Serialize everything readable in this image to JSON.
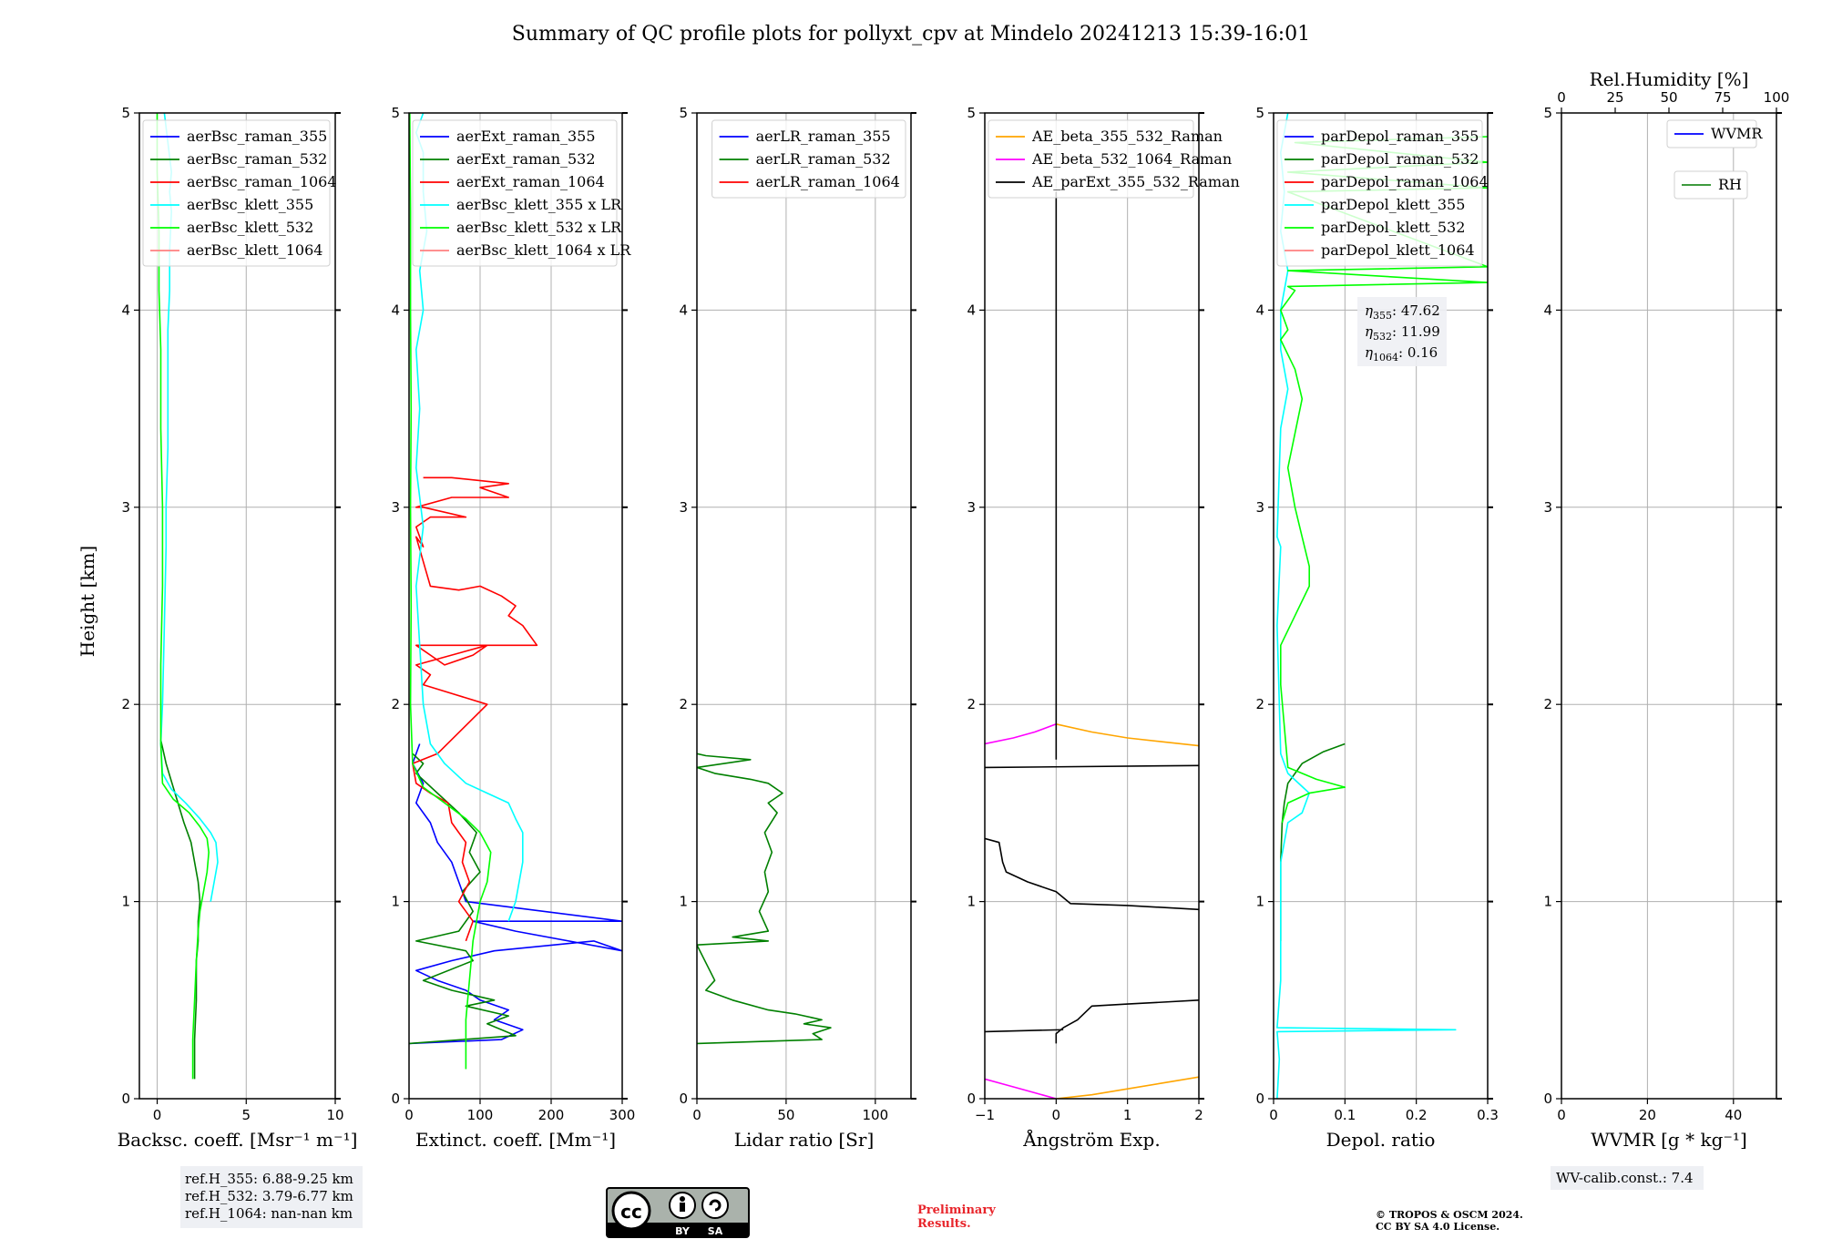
{
  "title": "Summary of QC profile plots for pollyxt_cpv at Mindelo 20241213 15:39-16:01",
  "y_label": "Height [km]",
  "chart_data": [
    {
      "type": "line",
      "name": "backscatter",
      "xlabel": "Backsc. coeff. [Msr⁻¹ m⁻¹]",
      "xlim": [
        -1,
        10
      ],
      "ylim": [
        0,
        5
      ],
      "xticks": [
        0,
        5,
        10
      ],
      "yticks": [
        0,
        1,
        2,
        3,
        4,
        5
      ],
      "grid": true,
      "legend": "top-right",
      "series": [
        {
          "name": "aerBsc_raman_355",
          "color": "#0000ff",
          "x": [],
          "y": []
        },
        {
          "name": "aerBsc_raman_532",
          "color": "#008000",
          "x": [
            2.1,
            2.1,
            2.2,
            2.2,
            2.3,
            2.3,
            2.4,
            2.3,
            2.1,
            1.9,
            1.5,
            1.0,
            0.5,
            0.2
          ],
          "y": [
            0.1,
            0.3,
            0.5,
            0.7,
            0.8,
            0.9,
            1.0,
            1.1,
            1.2,
            1.3,
            1.4,
            1.55,
            1.7,
            1.82
          ]
        },
        {
          "name": "aerBsc_raman_1064",
          "color": "#ff0000",
          "x": [],
          "y": []
        },
        {
          "name": "aerBsc_klett_355",
          "color": "#00ffff",
          "x": [
            3.0,
            3.2,
            3.4,
            3.3,
            3.0,
            2.4,
            1.6,
            0.8,
            0.3,
            0.2,
            0.3,
            0.4,
            0.5,
            0.5,
            0.6,
            0.6,
            0.6,
            0.7,
            0.7,
            0.8,
            0.7,
            0.8,
            0.6,
            0.4
          ],
          "y": [
            1.0,
            1.1,
            1.2,
            1.3,
            1.35,
            1.42,
            1.5,
            1.57,
            1.65,
            1.8,
            2.0,
            2.4,
            2.8,
            3.0,
            3.3,
            3.6,
            3.9,
            4.1,
            4.3,
            4.5,
            4.6,
            4.7,
            4.85,
            5.0
          ]
        },
        {
          "name": "aerBsc_klett_532",
          "color": "#00ff00",
          "x": [
            2.0,
            2.0,
            2.1,
            2.2,
            2.3,
            2.4,
            2.6,
            2.8,
            2.9,
            2.8,
            2.4,
            1.8,
            0.9,
            0.3,
            0.2,
            0.2,
            0.3,
            0.3,
            0.2,
            0.2,
            0.1,
            0.1,
            0.0,
            0.0
          ],
          "y": [
            0.1,
            0.3,
            0.5,
            0.7,
            0.85,
            0.95,
            1.05,
            1.15,
            1.25,
            1.32,
            1.38,
            1.45,
            1.52,
            1.6,
            1.8,
            2.2,
            2.6,
            3.0,
            3.4,
            3.8,
            4.1,
            4.4,
            4.7,
            5.0
          ]
        },
        {
          "name": "aerBsc_klett_1064",
          "color": "#ff8080",
          "x": [],
          "y": []
        }
      ]
    },
    {
      "type": "line",
      "name": "extinction",
      "xlabel": "Extinct. coeff. [Mm⁻¹]",
      "xlim": [
        0,
        300
      ],
      "ylim": [
        0,
        5
      ],
      "xticks": [
        0,
        100,
        200,
        300
      ],
      "yticks": [
        0,
        1,
        2,
        3,
        4,
        5
      ],
      "grid": true,
      "legend": "top-right",
      "series": [
        {
          "name": "aerExt_raman_355",
          "color": "#0000ff",
          "x": [
            0,
            130,
            160,
            120,
            140,
            100,
            80,
            40,
            10,
            60,
            120,
            260,
            300,
            150,
            90,
            300,
            80,
            70,
            60,
            40,
            30,
            10,
            20,
            5,
            15
          ],
          "y": [
            0.28,
            0.3,
            0.35,
            0.4,
            0.45,
            0.5,
            0.55,
            0.6,
            0.65,
            0.7,
            0.75,
            0.8,
            0.75,
            0.85,
            0.9,
            0.9,
            1.0,
            1.1,
            1.2,
            1.3,
            1.4,
            1.5,
            1.6,
            1.7,
            1.8
          ]
        },
        {
          "name": "aerExt_raman_532",
          "color": "#008000",
          "x": [
            0,
            150,
            110,
            140,
            80,
            120,
            60,
            20,
            90,
            80,
            10,
            70,
            90,
            75,
            100,
            85,
            95,
            70,
            40,
            10,
            20,
            5
          ],
          "y": [
            0.28,
            0.32,
            0.38,
            0.42,
            0.47,
            0.5,
            0.55,
            0.6,
            0.7,
            0.75,
            0.8,
            0.85,
            0.95,
            1.05,
            1.15,
            1.25,
            1.35,
            1.45,
            1.55,
            1.65,
            1.7,
            1.75
          ]
        },
        {
          "name": "aerExt_raman_1064",
          "color": "#ff0000",
          "x": [
            80,
            90,
            70,
            85,
            75,
            80,
            60,
            55,
            30,
            10,
            5,
            40,
            110,
            20,
            30,
            10,
            110,
            90,
            50,
            10,
            180,
            160,
            140,
            150,
            130,
            100,
            70,
            30,
            10,
            20,
            10,
            30,
            80,
            20,
            10,
            60,
            140,
            100,
            140,
            60,
            20
          ],
          "y": [
            0.8,
            0.9,
            1.0,
            1.1,
            1.2,
            1.3,
            1.4,
            1.5,
            1.55,
            1.6,
            1.7,
            1.75,
            2.0,
            2.1,
            2.15,
            2.2,
            2.3,
            2.25,
            2.2,
            2.3,
            2.3,
            2.4,
            2.45,
            2.5,
            2.55,
            2.6,
            2.58,
            2.6,
            2.85,
            2.8,
            2.9,
            2.95,
            2.95,
            3.0,
            3.0,
            3.05,
            3.05,
            3.1,
            3.12,
            3.15,
            3.15
          ]
        },
        {
          "name": "aerBsc_klett_355 x LR",
          "color": "#00ffff",
          "x": [
            140,
            150,
            155,
            160,
            160,
            150,
            140,
            110,
            80,
            50,
            30,
            20,
            15,
            10,
            20,
            10,
            15,
            10,
            20,
            15,
            25,
            20,
            20,
            10,
            20
          ],
          "y": [
            0.9,
            1.0,
            1.1,
            1.2,
            1.35,
            1.42,
            1.5,
            1.55,
            1.6,
            1.7,
            1.8,
            2.0,
            2.3,
            2.6,
            2.9,
            3.2,
            3.5,
            3.8,
            4.0,
            4.2,
            4.4,
            4.6,
            4.8,
            4.9,
            5.0
          ]
        },
        {
          "name": "aerBsc_klett_532 x LR",
          "color": "#00ff00",
          "x": [
            80,
            80,
            85,
            90,
            95,
            100,
            110,
            115,
            100,
            80,
            50,
            20,
            5,
            2,
            3,
            2,
            3,
            2,
            2,
            1
          ],
          "y": [
            0.15,
            0.4,
            0.6,
            0.8,
            0.9,
            1.0,
            1.1,
            1.25,
            1.35,
            1.42,
            1.5,
            1.58,
            1.7,
            2.0,
            2.5,
            3.0,
            3.5,
            4.0,
            4.5,
            5.0
          ]
        },
        {
          "name": "aerBsc_klett_1064 x LR",
          "color": "#ff8080",
          "x": [],
          "y": []
        }
      ]
    },
    {
      "type": "line",
      "name": "lidar_ratio",
      "xlabel": "Lidar ratio [Sr]",
      "xlim": [
        0,
        120
      ],
      "ylim": [
        0,
        5
      ],
      "xticks": [
        0,
        50,
        100
      ],
      "yticks": [
        0,
        1,
        2,
        3,
        4,
        5
      ],
      "grid": true,
      "legend": "top-right",
      "series": [
        {
          "name": "aerLR_raman_355",
          "color": "#0000ff",
          "x": [],
          "y": []
        },
        {
          "name": "aerLR_raman_532",
          "color": "#008000",
          "x": [
            0,
            70,
            65,
            75,
            60,
            70,
            55,
            40,
            20,
            5,
            10,
            0,
            40,
            20,
            40,
            35,
            40,
            38,
            42,
            38,
            45,
            40,
            48,
            40,
            30,
            10,
            0,
            30,
            5,
            0
          ],
          "y": [
            0.28,
            0.3,
            0.33,
            0.36,
            0.38,
            0.4,
            0.43,
            0.45,
            0.5,
            0.55,
            0.6,
            0.78,
            0.8,
            0.82,
            0.85,
            0.95,
            1.05,
            1.15,
            1.25,
            1.35,
            1.45,
            1.5,
            1.55,
            1.6,
            1.62,
            1.65,
            1.68,
            1.72,
            1.74,
            1.75
          ]
        },
        {
          "name": "aerLR_raman_1064",
          "color": "#ff0000",
          "x": [],
          "y": []
        }
      ]
    },
    {
      "type": "line",
      "name": "angstrom",
      "xlabel": "Ångström Exp.",
      "xlim": [
        -1,
        2
      ],
      "ylim": [
        0,
        5
      ],
      "xticks": [
        -1,
        0,
        1,
        2
      ],
      "yticks": [
        0,
        1,
        2,
        3,
        4,
        5
      ],
      "grid": true,
      "legend": "top-right",
      "series": [
        {
          "name": "AE_beta_355_532_Raman",
          "color": "#ffa500",
          "x": [
            0,
            0.5,
            1.0,
            1.5,
            2.0
          ],
          "y": [
            0.0,
            0.02,
            0.05,
            0.08,
            0.11
          ],
          "x2": [
            0,
            0.5,
            1.0,
            1.5,
            2.0
          ],
          "y2": [
            1.9,
            1.86,
            1.83,
            1.81,
            1.79
          ]
        },
        {
          "name": "AE_beta_532_1064_Raman",
          "color": "#ff00ff",
          "x": [
            -1.0,
            -0.6,
            -0.3,
            0
          ],
          "y": [
            0.1,
            0.06,
            0.03,
            0.0
          ],
          "x2": [
            -1.0,
            -0.6,
            -0.3,
            0
          ],
          "y2": [
            1.8,
            1.83,
            1.86,
            1.9
          ]
        },
        {
          "name": "AE_parExt_355_532_Raman",
          "color": "#000000",
          "x": [
            0,
            0,
            0.1,
            0.3,
            0.5,
            1.0,
            1.5,
            2.0
          ],
          "y": [
            0.28,
            0.33,
            0.36,
            0.4,
            0.47,
            0.48,
            0.49,
            0.5
          ],
          "x2": [
            -1.0,
            -0.8,
            -0.75,
            -0.7,
            -0.4,
            0.0,
            0.2,
            1.0,
            2.0
          ],
          "y2": [
            1.32,
            1.3,
            1.2,
            1.15,
            1.1,
            1.05,
            0.99,
            0.98,
            0.96
          ]
        }
      ]
    },
    {
      "type": "line",
      "name": "depolarization",
      "xlabel": "Depol. ratio",
      "xlim": [
        0,
        0.3
      ],
      "ylim": [
        0,
        5
      ],
      "xticks": [
        0.0,
        0.1,
        0.2,
        0.3
      ],
      "yticks": [
        0,
        1,
        2,
        3,
        4,
        5
      ],
      "grid": true,
      "legend": "top-right",
      "series": [
        {
          "name": "parDepol_raman_355",
          "color": "#0000ff",
          "x": [],
          "y": []
        },
        {
          "name": "parDepol_raman_532",
          "color": "#008000",
          "x": [
            0.01,
            0.01,
            0.01,
            0.012,
            0.015,
            0.02,
            0.04,
            0.07,
            0.1
          ],
          "y": [
            0.8,
            1.0,
            1.2,
            1.4,
            1.5,
            1.6,
            1.7,
            1.76,
            1.8
          ]
        },
        {
          "name": "parDepol_raman_1064",
          "color": "#ff0000",
          "x": [],
          "y": []
        },
        {
          "name": "parDepol_klett_355",
          "color": "#00ffff",
          "x": [
            0.005,
            0.008,
            0.005,
            0.255,
            0.005,
            0.01,
            0.01,
            0.02,
            0.04,
            0.05,
            0.02,
            0.01,
            0.005,
            0.01,
            0.005,
            0.01,
            0.02,
            0.01,
            0.01,
            0.02,
            0.01,
            0.015,
            0.01,
            0.02
          ],
          "y": [
            0.0,
            0.2,
            0.34,
            0.35,
            0.36,
            0.6,
            1.2,
            1.4,
            1.45,
            1.55,
            1.65,
            1.75,
            2.4,
            2.8,
            2.85,
            3.4,
            3.6,
            3.8,
            4.0,
            4.2,
            4.4,
            4.6,
            4.8,
            5.0
          ]
        },
        {
          "name": "parDepol_klett_532",
          "color": "#00ff00",
          "x": [
            0.012,
            0.02,
            0.05,
            0.1,
            0.06,
            0.02,
            0.01,
            0.01,
            0.03,
            0.05,
            0.05,
            0.04,
            0.03,
            0.02,
            0.04,
            0.03,
            0.01,
            0.02,
            0.01,
            0.03,
            0.02,
            0.3,
            0.02,
            0.3,
            0.02,
            0.3,
            0.02,
            0.3,
            0.03,
            0.3
          ],
          "y": [
            1.4,
            1.5,
            1.55,
            1.58,
            1.62,
            1.68,
            2.1,
            2.3,
            2.45,
            2.6,
            2.7,
            2.85,
            3.0,
            3.2,
            3.55,
            3.7,
            3.85,
            3.9,
            4.0,
            4.1,
            4.12,
            4.14,
            4.2,
            4.22,
            4.6,
            4.62,
            4.7,
            4.75,
            4.85,
            4.88
          ]
        },
        {
          "name": "parDepol_klett_1064",
          "color": "#ff8080",
          "x": [],
          "y": []
        }
      ]
    },
    {
      "type": "line",
      "name": "wvmr",
      "xlabel": "WVMR [g * kg⁻¹]",
      "xlabel_top": "Rel.Humidity [%]",
      "xlim": [
        0,
        50
      ],
      "xlim_top": [
        0,
        100
      ],
      "ylim": [
        0,
        5
      ],
      "xticks": [
        0,
        20,
        40
      ],
      "xticks_top": [
        0,
        25,
        50,
        75,
        100
      ],
      "yticks": [
        0,
        1,
        2,
        3,
        4,
        5
      ],
      "grid": true,
      "legend": "top-right",
      "series": [
        {
          "name": "WVMR",
          "color": "#0000ff",
          "x": [],
          "y": []
        },
        {
          "name": "RH",
          "color": "#228b22",
          "x": [],
          "y": []
        }
      ]
    }
  ],
  "annotations": {
    "eta_355_label": "η",
    "eta_355_sub": "355",
    "eta_355_value": ": 47.62",
    "eta_532_label": "η",
    "eta_532_sub": "532",
    "eta_532_value": ": 11.99",
    "eta_1064_label": "η",
    "eta_1064_sub": "1064",
    "eta_1064_value": ": 0.16",
    "refh_355": "ref.H_355: 6.88-9.25 km",
    "refh_532": "ref.H_532: 3.79-6.77 km",
    "refh_1064": "ref.H_1064: nan-nan km",
    "wv_calib": "WV-calib.const.: 7.4",
    "prelim_1": "Preliminary",
    "prelim_2": "Results.",
    "copyright_1": "© TROPOS & OSCM 2024.",
    "copyright_2": "CC BY SA 4.0 License.",
    "cc_badge_text": "cc",
    "cc_by": "BY",
    "cc_sa": "SA"
  }
}
